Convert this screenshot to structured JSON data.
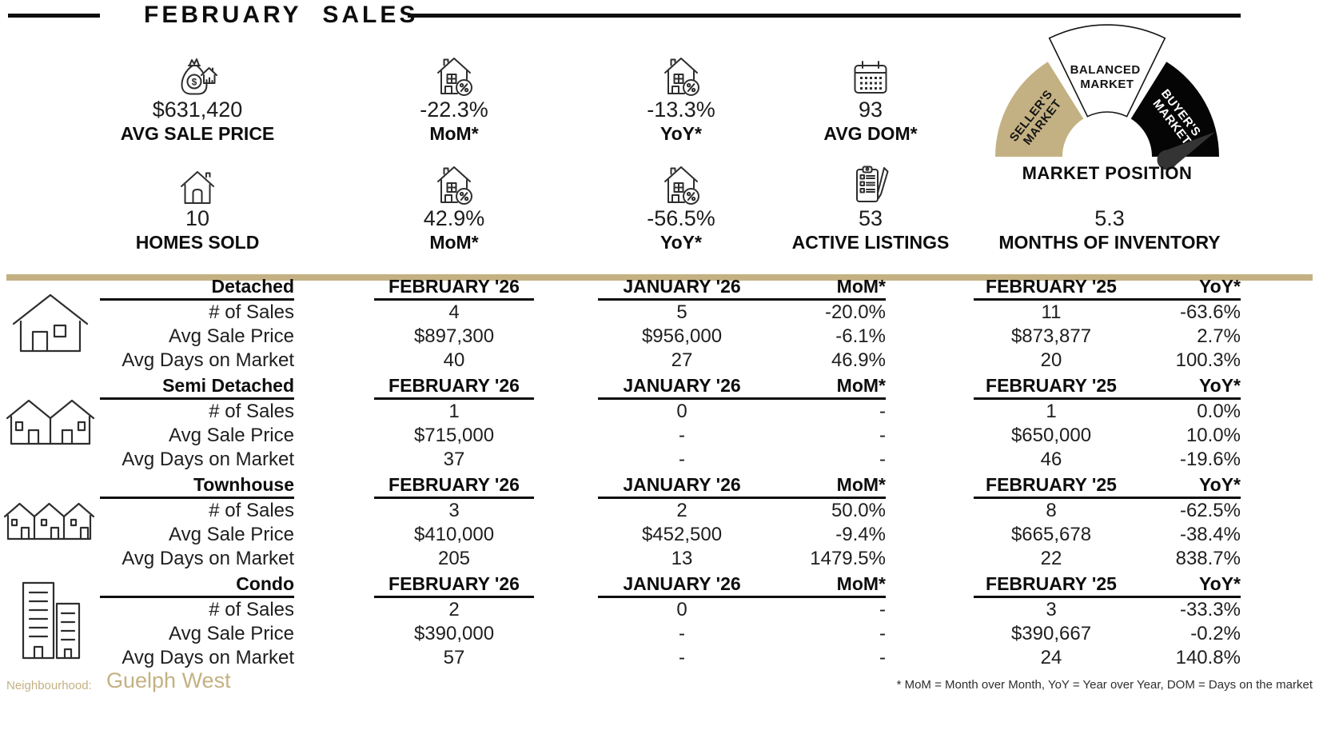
{
  "title": "FEBRUARY SALES",
  "stats": {
    "row1": [
      {
        "icon": "money-bag-house-icon",
        "value": "$631,420",
        "label": "AVG SALE PRICE"
      },
      {
        "icon": "house-percent-icon",
        "value": "-22.3%",
        "label": "MoM*"
      },
      {
        "icon": "house-percent-icon",
        "value": "-13.3%",
        "label": "YoY*"
      },
      {
        "icon": "calendar-icon",
        "value": "93",
        "label": "AVG DOM*"
      }
    ],
    "row2": [
      {
        "icon": "house-icon",
        "value": "10",
        "label": "HOMES SOLD"
      },
      {
        "icon": "house-percent-icon",
        "value": "42.9%",
        "label": "MoM*"
      },
      {
        "icon": "house-percent-icon",
        "value": "-56.5%",
        "label": "YoY*"
      },
      {
        "icon": "clipboard-pencil-icon",
        "value": "53",
        "label": "ACTIVE LISTINGS"
      },
      {
        "icon": "none",
        "value": "5.3",
        "label": "MONTHS OF INVENTORY"
      }
    ]
  },
  "gauge": {
    "title": "MARKET POSITION",
    "needle_points_to": "BUYER'S MARKET",
    "segments": [
      {
        "label": "SELLER'S MARKET",
        "label_lines": [
          "SELLER'S",
          "MARKET"
        ],
        "color": "#C4B183"
      },
      {
        "label": "BALANCED MARKET",
        "label_lines": [
          "BALANCED",
          "MARKET"
        ],
        "color": "#FFFFFF"
      },
      {
        "label": "BUYER'S MARKET",
        "label_lines": [
          "BUYER'S",
          "MARKET"
        ],
        "color": "#000000"
      }
    ]
  },
  "table": {
    "row_labels": [
      "# of Sales",
      "Avg Sale Price",
      "Avg Days on Market"
    ],
    "columns": [
      "FEBRUARY '26",
      "JANUARY '26",
      "MoM*",
      "FEBRUARY '25",
      "YoY*"
    ],
    "sections": [
      {
        "name": "Detached",
        "icon": "detached-house-icon",
        "rows": [
          [
            "4",
            "5",
            "-20.0%",
            "11",
            "-63.6%"
          ],
          [
            "$897,300",
            "$956,000",
            "-6.1%",
            "$873,877",
            "2.7%"
          ],
          [
            "40",
            "27",
            "46.9%",
            "20",
            "100.3%"
          ]
        ]
      },
      {
        "name": "Semi Detached",
        "icon": "semi-detached-icon",
        "rows": [
          [
            "1",
            "0",
            "-",
            "1",
            "0.0%"
          ],
          [
            "$715,000",
            "-",
            "-",
            "$650,000",
            "10.0%"
          ],
          [
            "37",
            "-",
            "-",
            "46",
            "-19.6%"
          ]
        ]
      },
      {
        "name": "Townhouse",
        "icon": "townhouse-icon",
        "rows": [
          [
            "3",
            "2",
            "50.0%",
            "8",
            "-62.5%"
          ],
          [
            "$410,000",
            "$452,500",
            "-9.4%",
            "$665,678",
            "-38.4%"
          ],
          [
            "205",
            "13",
            "1479.5%",
            "22",
            "838.7%"
          ]
        ]
      },
      {
        "name": "Condo",
        "icon": "condo-icon",
        "rows": [
          [
            "2",
            "0",
            "-",
            "3",
            "-33.3%"
          ],
          [
            "$390,000",
            "-",
            "-",
            "$390,667",
            "-0.2%"
          ],
          [
            "57",
            "-",
            "-",
            "24",
            "140.8%"
          ]
        ]
      }
    ]
  },
  "footer": {
    "neighbourhood_label": "Neighbourhood:",
    "neighbourhood_value": "Guelph West",
    "footnote": "* MoM = Month over Month, YoY = Year over Year, DOM = Days on the market"
  },
  "colors": {
    "accent_tan": "#C4B183",
    "black": "#0d0d0d",
    "needle": "#343434"
  }
}
